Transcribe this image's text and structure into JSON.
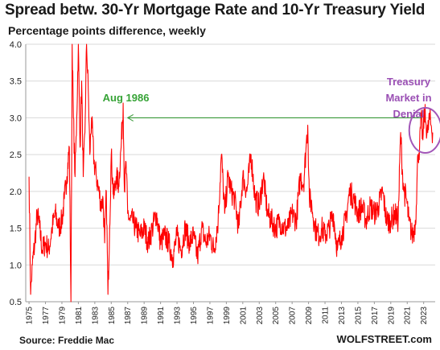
{
  "colors": {
    "series": "#ff0000",
    "arrow": "#3a9a3a",
    "circle": "#a257b8",
    "grid": "#d9d9d9",
    "label_aug": "#36a336",
    "label_denial": "#9a4fb4"
  },
  "chart_data": {
    "type": "line",
    "title": "Spread betw. 30-Yr Mortgage Rate and 10-Yr Treasury Yield",
    "subtitle": "Percentage points difference, weekly",
    "ylim": [
      0.5,
      4.0
    ],
    "yticks": [
      "0.5",
      "1.0",
      "1.5",
      "2.0",
      "2.5",
      "3.0",
      "3.5",
      "4.0"
    ],
    "ytick_values": [
      0.5,
      1.0,
      1.5,
      2.0,
      2.5,
      3.0,
      3.5,
      4.0
    ],
    "xlim": [
      1974.6,
      2024.4
    ],
    "xticks": [
      "1975",
      "1977",
      "1979",
      "1981",
      "1983",
      "1985",
      "1987",
      "1989",
      "1991",
      "1993",
      "1995",
      "1997",
      "1999",
      "2001",
      "2003",
      "2005",
      "2007",
      "2009",
      "2011",
      "2013",
      "2015",
      "2017",
      "2019",
      "2021",
      "2023"
    ],
    "xtick_values": [
      1975,
      1977,
      1979,
      1981,
      1983,
      1985,
      1987,
      1989,
      1991,
      1993,
      1995,
      1997,
      1999,
      2001,
      2003,
      2005,
      2007,
      2009,
      2011,
      2013,
      2015,
      2017,
      2019,
      2021,
      2023
    ],
    "grid": "horizontal",
    "series": [
      {
        "x": [
          1975.0,
          1975.2,
          1975.4,
          1975.7,
          1976.0,
          1976.3,
          1976.6,
          1977.0,
          1977.4,
          1977.8,
          1978.2,
          1978.6,
          1979.0,
          1979.3,
          1979.6,
          1979.9,
          1980.1,
          1980.25,
          1980.4,
          1980.6,
          1980.8,
          1981.0,
          1981.2,
          1981.4,
          1981.6,
          1981.8,
          1982.0,
          1982.2,
          1982.4,
          1982.6,
          1982.9,
          1983.2,
          1983.5,
          1983.8,
          1984.0,
          1984.2,
          1984.4,
          1984.6,
          1984.8,
          1985.0,
          1985.3,
          1985.6,
          1985.9,
          1986.2,
          1986.45,
          1986.6,
          1986.8,
          1987.0,
          1987.3,
          1987.6,
          1988.0,
          1988.5,
          1989.0,
          1989.5,
          1990.0,
          1990.5,
          1991.0,
          1991.5,
          1992.0,
          1992.5,
          1993.0,
          1993.5,
          1994.0,
          1994.5,
          1995.0,
          1995.5,
          1996.0,
          1996.5,
          1997.0,
          1997.5,
          1998.0,
          1998.4,
          1998.8,
          1999.2,
          1999.6,
          2000.0,
          2000.5,
          2001.0,
          2001.5,
          2002.0,
          2002.5,
          2003.0,
          2003.5,
          2004.0,
          2004.5,
          2005.0,
          2005.5,
          2006.0,
          2006.5,
          2007.0,
          2007.5,
          2008.0,
          2008.4,
          2008.7,
          2008.9,
          2009.1,
          2009.4,
          2009.8,
          2010.2,
          2010.6,
          2011.0,
          2011.5,
          2012.0,
          2012.5,
          2013.0,
          2013.5,
          2014.0,
          2014.5,
          2015.0,
          2015.5,
          2016.0,
          2016.5,
          2017.0,
          2017.5,
          2018.0,
          2018.5,
          2019.0,
          2019.5,
          2019.9,
          2020.2,
          2020.4,
          2020.6,
          2020.9,
          2021.2,
          2021.6,
          2021.9,
          2022.1,
          2022.3,
          2022.5,
          2022.7,
          2022.9,
          2023.1,
          2023.3,
          2023.5,
          2023.7,
          2023.9,
          2024.1
        ],
        "values": [
          2.2,
          0.6,
          1.0,
          1.3,
          1.7,
          1.5,
          1.2,
          1.3,
          1.2,
          1.5,
          1.7,
          1.5,
          1.6,
          1.9,
          2.2,
          2.6,
          0.5,
          4.0,
          3.0,
          2.2,
          3.0,
          4.0,
          2.6,
          3.5,
          2.2,
          2.8,
          4.0,
          3.4,
          2.5,
          3.0,
          2.4,
          2.2,
          2.0,
          1.8,
          1.9,
          1.3,
          2.0,
          0.6,
          1.5,
          2.5,
          1.9,
          2.2,
          2.1,
          2.6,
          3.2,
          2.0,
          2.4,
          1.7,
          1.6,
          1.6,
          1.5,
          1.4,
          1.5,
          1.3,
          1.5,
          1.7,
          1.3,
          1.4,
          1.3,
          1.1,
          1.4,
          1.2,
          1.5,
          1.3,
          1.4,
          1.1,
          1.5,
          1.3,
          1.4,
          1.2,
          1.6,
          2.5,
          1.7,
          2.2,
          2.0,
          1.9,
          1.5,
          2.2,
          2.0,
          2.5,
          1.9,
          1.8,
          2.2,
          1.7,
          1.6,
          1.5,
          1.6,
          1.5,
          1.5,
          1.7,
          1.6,
          2.2,
          2.1,
          2.6,
          2.9,
          1.9,
          1.8,
          1.5,
          1.4,
          1.5,
          1.4,
          1.5,
          1.7,
          1.2,
          1.4,
          1.6,
          2.0,
          1.9,
          1.7,
          1.8,
          1.6,
          1.8,
          1.7,
          1.8,
          2.0,
          1.6,
          1.6,
          1.7,
          1.6,
          2.8,
          2.3,
          2.0,
          1.9,
          1.6,
          1.4,
          1.5,
          1.8,
          2.5,
          2.6,
          3.0,
          2.7,
          3.1,
          2.9,
          2.8,
          3.0,
          2.9,
          2.8
        ]
      }
    ],
    "annotations": [
      {
        "text": "Aug 1986",
        "x": 1986.6,
        "y": 3.2
      },
      {
        "text": "Treasury",
        "x": 2022.9,
        "y": 3.0
      },
      {
        "text": "Market in",
        "x": 2022.9,
        "y": 3.0
      },
      {
        "text": "Denial",
        "x": 2022.9,
        "y": 3.0
      }
    ]
  },
  "footer": {
    "source": "Source: Freddie Mac",
    "brand": "WOLFSTREET.com"
  }
}
